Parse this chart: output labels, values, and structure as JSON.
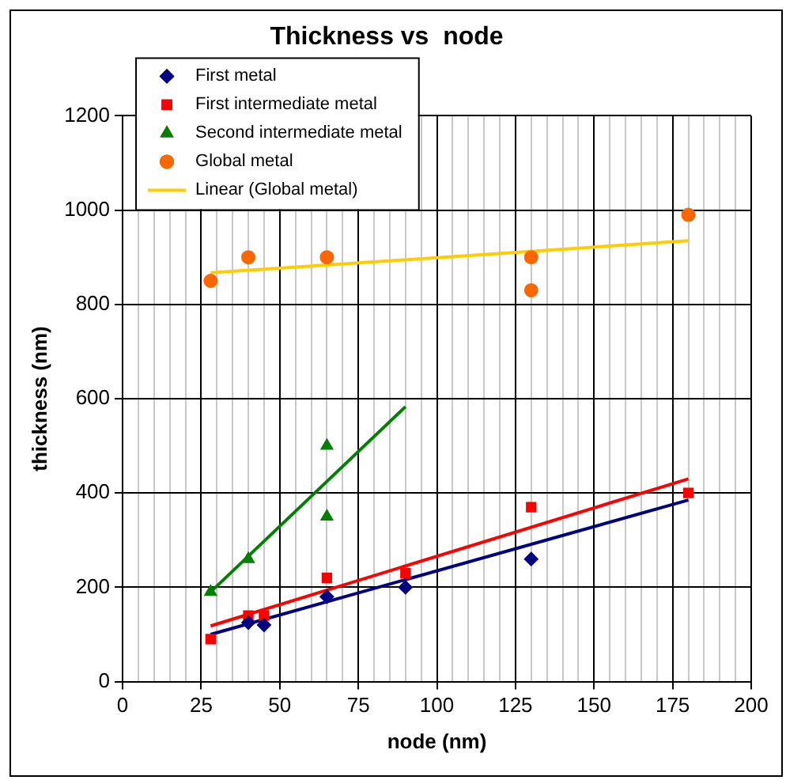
{
  "chart_data": {
    "type": "scatter",
    "title": "Thickness vs  node",
    "xlabel": "node (nm)",
    "ylabel": "thickness (nm)",
    "xlim": [
      0,
      200
    ],
    "xticks": [
      0,
      {
        "value": 5,
        "label": null
      },
      {
        "value": 10,
        "label": null
      },
      {
        "value": 15,
        "label": null
      },
      {
        "value": 20,
        "label": null
      },
      25,
      {
        "value": 30,
        "label": null
      },
      {
        "value": 35,
        "label": null
      },
      {
        "value": 40,
        "label": null
      },
      {
        "value": 45,
        "label": null
      },
      50,
      {
        "value": 55,
        "label": null
      },
      {
        "value": 60,
        "label": null
      },
      {
        "value": 65,
        "label": null
      },
      {
        "value": 70,
        "label": null
      },
      75,
      {
        "value": 80,
        "label": null
      },
      {
        "value": 85,
        "label": null
      },
      {
        "value": 90,
        "label": null
      },
      {
        "value": 95,
        "label": null
      },
      100,
      {
        "value": 105,
        "label": null
      },
      {
        "value": 110,
        "label": null
      },
      {
        "value": 115,
        "label": null
      },
      {
        "value": 120,
        "label": null
      },
      125,
      {
        "value": 130,
        "label": null
      },
      {
        "value": 135,
        "label": null
      },
      {
        "value": 140,
        "label": null
      },
      {
        "value": 145,
        "label": null
      },
      150,
      {
        "value": 155,
        "label": null
      },
      {
        "value": 160,
        "label": null
      },
      {
        "value": 165,
        "label": null
      },
      {
        "value": 170,
        "label": null
      },
      175,
      {
        "value": 180,
        "label": null
      },
      {
        "value": 185,
        "label": null
      },
      {
        "value": 190,
        "label": null
      },
      {
        "value": 195,
        "label": null
      },
      200
    ],
    "ylim": [
      0,
      1200
    ],
    "yticks": [
      0,
      200,
      400,
      600,
      800,
      1000,
      1200
    ],
    "grid": true,
    "legend": "top left",
    "series": [
      {
        "name": "First metal",
        "type": "scatter",
        "marker": "diamond",
        "color": "#000080",
        "x": [
          40,
          45,
          65,
          90,
          130
        ],
        "values": [
          125,
          120,
          180,
          200,
          260
        ]
      },
      {
        "name": "First intermediate metal",
        "type": "scatter",
        "marker": "square",
        "color": "#ff0000",
        "x": [
          28,
          40,
          45,
          65,
          90,
          130,
          180
        ],
        "values": [
          90,
          140,
          140,
          220,
          230,
          370,
          400
        ]
      },
      {
        "name": "Second intermediate metal",
        "type": "scatter",
        "marker": "triangle",
        "color": "#008000",
        "x": [
          28,
          40,
          65,
          65
        ],
        "values": [
          190,
          260,
          500,
          350
        ]
      },
      {
        "name": "Global metal",
        "type": "scatter",
        "marker": "circle",
        "color": "#ff6600",
        "x": [
          28,
          40,
          65,
          130,
          130,
          180
        ],
        "values": [
          850,
          900,
          900,
          900,
          830,
          990
        ]
      },
      {
        "name": "Linear (Global metal)",
        "type": "line",
        "marker": "none",
        "color": "#ffcc00",
        "x": [
          28,
          180
        ],
        "values": [
          867,
          935
        ]
      },
      {
        "type": "line",
        "marker": "none",
        "color": "#000080",
        "x": [
          28,
          180
        ],
        "values": [
          100,
          385
        ]
      },
      {
        "type": "line",
        "marker": "none",
        "color": "#ff0000",
        "x": [
          28,
          180
        ],
        "values": [
          118,
          430
        ]
      },
      {
        "type": "line",
        "marker": "none",
        "color": "#008000",
        "x": [
          28,
          90
        ],
        "values": [
          190,
          583
        ]
      }
    ]
  }
}
